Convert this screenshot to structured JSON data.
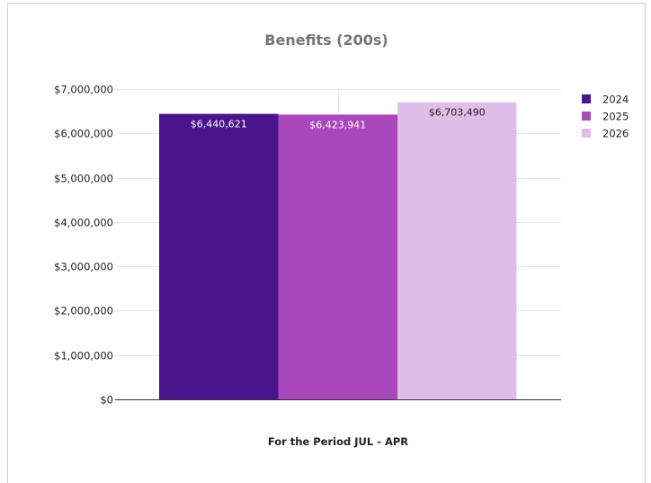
{
  "chart_data": {
    "type": "bar",
    "title": "Benefits (200s)",
    "xlabel": "For the Period JUL - APR",
    "ylabel": "",
    "ylim": [
      0,
      7000000
    ],
    "yticks": [
      0,
      1000000,
      2000000,
      3000000,
      4000000,
      5000000,
      6000000,
      7000000
    ],
    "ytick_labels": [
      "$0",
      "$1,000,000",
      "$2,000,000",
      "$3,000,000",
      "$4,000,000",
      "$5,000,000",
      "$6,000,000",
      "$7,000,000"
    ],
    "categories": [
      ""
    ],
    "series": [
      {
        "name": "2024",
        "values": [
          6440621
        ],
        "label": "$6,440,621",
        "color": "#4a148c",
        "label_color": "#ffffff"
      },
      {
        "name": "2025",
        "values": [
          6423941
        ],
        "label": "$6,423,941",
        "color": "#ab47bc",
        "label_color": "#ffffff"
      },
      {
        "name": "2026",
        "values": [
          6703490
        ],
        "label": "$6,703,490",
        "color": "#e1bee7",
        "label_color": "#222222"
      }
    ],
    "grid": true,
    "legend_position": "right"
  }
}
